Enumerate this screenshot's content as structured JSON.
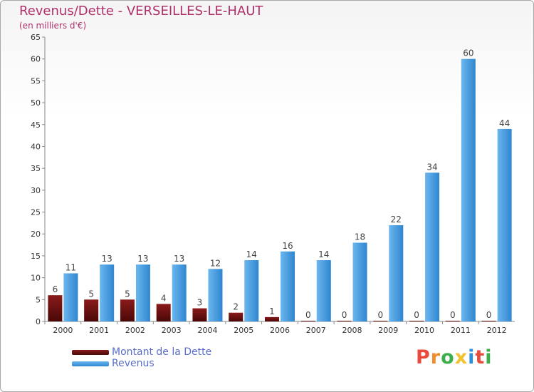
{
  "title": "Revenus/Dette - VERSEILLES-LE-HAUT",
  "subtitle": "(en milliers d'€)",
  "legend": {
    "dette": "Montant de la Dette",
    "revenus": "Revenus"
  },
  "logo": {
    "text": "Proxiti",
    "colors": [
      "#e84b3a",
      "#f28c28",
      "#3cae4a",
      "#f2c12e",
      "#2e8fd8",
      "#e84b3a",
      "#3cae4a"
    ]
  },
  "colors": {
    "dette_top": "#8a1a1a",
    "dette_bottom": "#4a0808",
    "revenus_top": "#6bb6ee",
    "revenus_bottom": "#2f86cf",
    "title": "#b0306a",
    "legend_text": "#5a6ec9"
  },
  "chart_data": {
    "type": "bar",
    "categories": [
      "2000",
      "2001",
      "2002",
      "2003",
      "2004",
      "2005",
      "2006",
      "2007",
      "2008",
      "2009",
      "2010",
      "2011",
      "2012"
    ],
    "series": [
      {
        "name": "Montant de la Dette",
        "values": [
          6,
          5,
          5,
          4,
          3,
          2,
          1,
          0,
          0,
          0,
          0,
          0,
          0
        ]
      },
      {
        "name": "Revenus",
        "values": [
          11,
          13,
          13,
          13,
          12,
          14,
          16,
          14,
          18,
          22,
          34,
          60,
          44
        ]
      }
    ],
    "ylim": [
      0,
      65
    ],
    "yticks": [
      0,
      5,
      10,
      15,
      20,
      25,
      30,
      35,
      40,
      45,
      50,
      55,
      60,
      65
    ],
    "grid": false,
    "legend_position": "bottom-left",
    "title": "Revenus/Dette - VERSEILLES-LE-HAUT",
    "ylabel": "(en milliers d'€)",
    "xlabel": ""
  }
}
